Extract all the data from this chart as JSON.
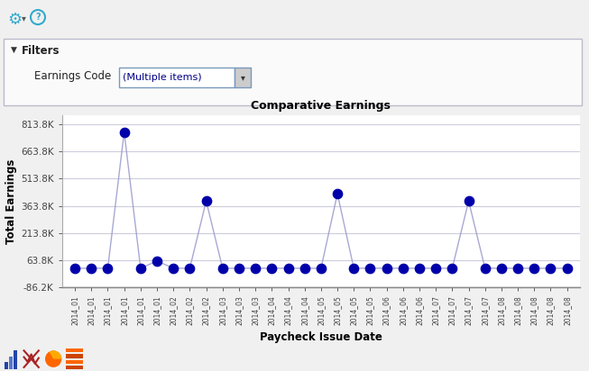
{
  "title": "Comparative Earnings",
  "xlabel": "Paycheck Issue Date",
  "ylabel": "Total Earnings",
  "ylim": [
    -86200,
    863800
  ],
  "yticks": [
    -86200,
    63800,
    213800,
    363800,
    513800,
    663800,
    813800
  ],
  "ytick_labels": [
    "-86.2K",
    "63.8K",
    "213.8K",
    "363.8K",
    "513.8K",
    "663.8K",
    "813.8K"
  ],
  "x_labels": [
    "2014_01",
    "2014_01",
    "2014_01",
    "2014_01",
    "2014_01",
    "2014_01",
    "2014_02",
    "2014_02",
    "2014_02",
    "2014_03",
    "2014_03",
    "2014_03",
    "2014_04",
    "2014_04",
    "2014_04",
    "2014_05",
    "2014_05",
    "2014_05",
    "2014_05",
    "2014_06",
    "2014_06",
    "2014_06",
    "2014_07",
    "2014_07",
    "2014_07",
    "2014_07",
    "2014_08",
    "2014_08",
    "2014_08",
    "2014_08",
    "2014_08"
  ],
  "values": [
    20000,
    20000,
    20000,
    770000,
    20000,
    60000,
    20000,
    20000,
    390000,
    20000,
    20000,
    20000,
    20000,
    20000,
    20000,
    20000,
    430000,
    20000,
    20000,
    20000,
    20000,
    20000,
    20000,
    20000,
    390000,
    20000,
    20000,
    20000,
    20000,
    20000,
    20000
  ],
  "dot_color": "#0000AA",
  "line_color": "#9999CC",
  "bg_color": "#F0F0F0",
  "plot_bg": "#FFFFFF",
  "grid_color": "#CCCCDD",
  "title_color": "#000000",
  "axis_label_color": "#000000",
  "tick_label_color": "#444444",
  "filter_text": "Filters",
  "filter_label": "Earnings Code",
  "filter_value": "(Multiple items)"
}
